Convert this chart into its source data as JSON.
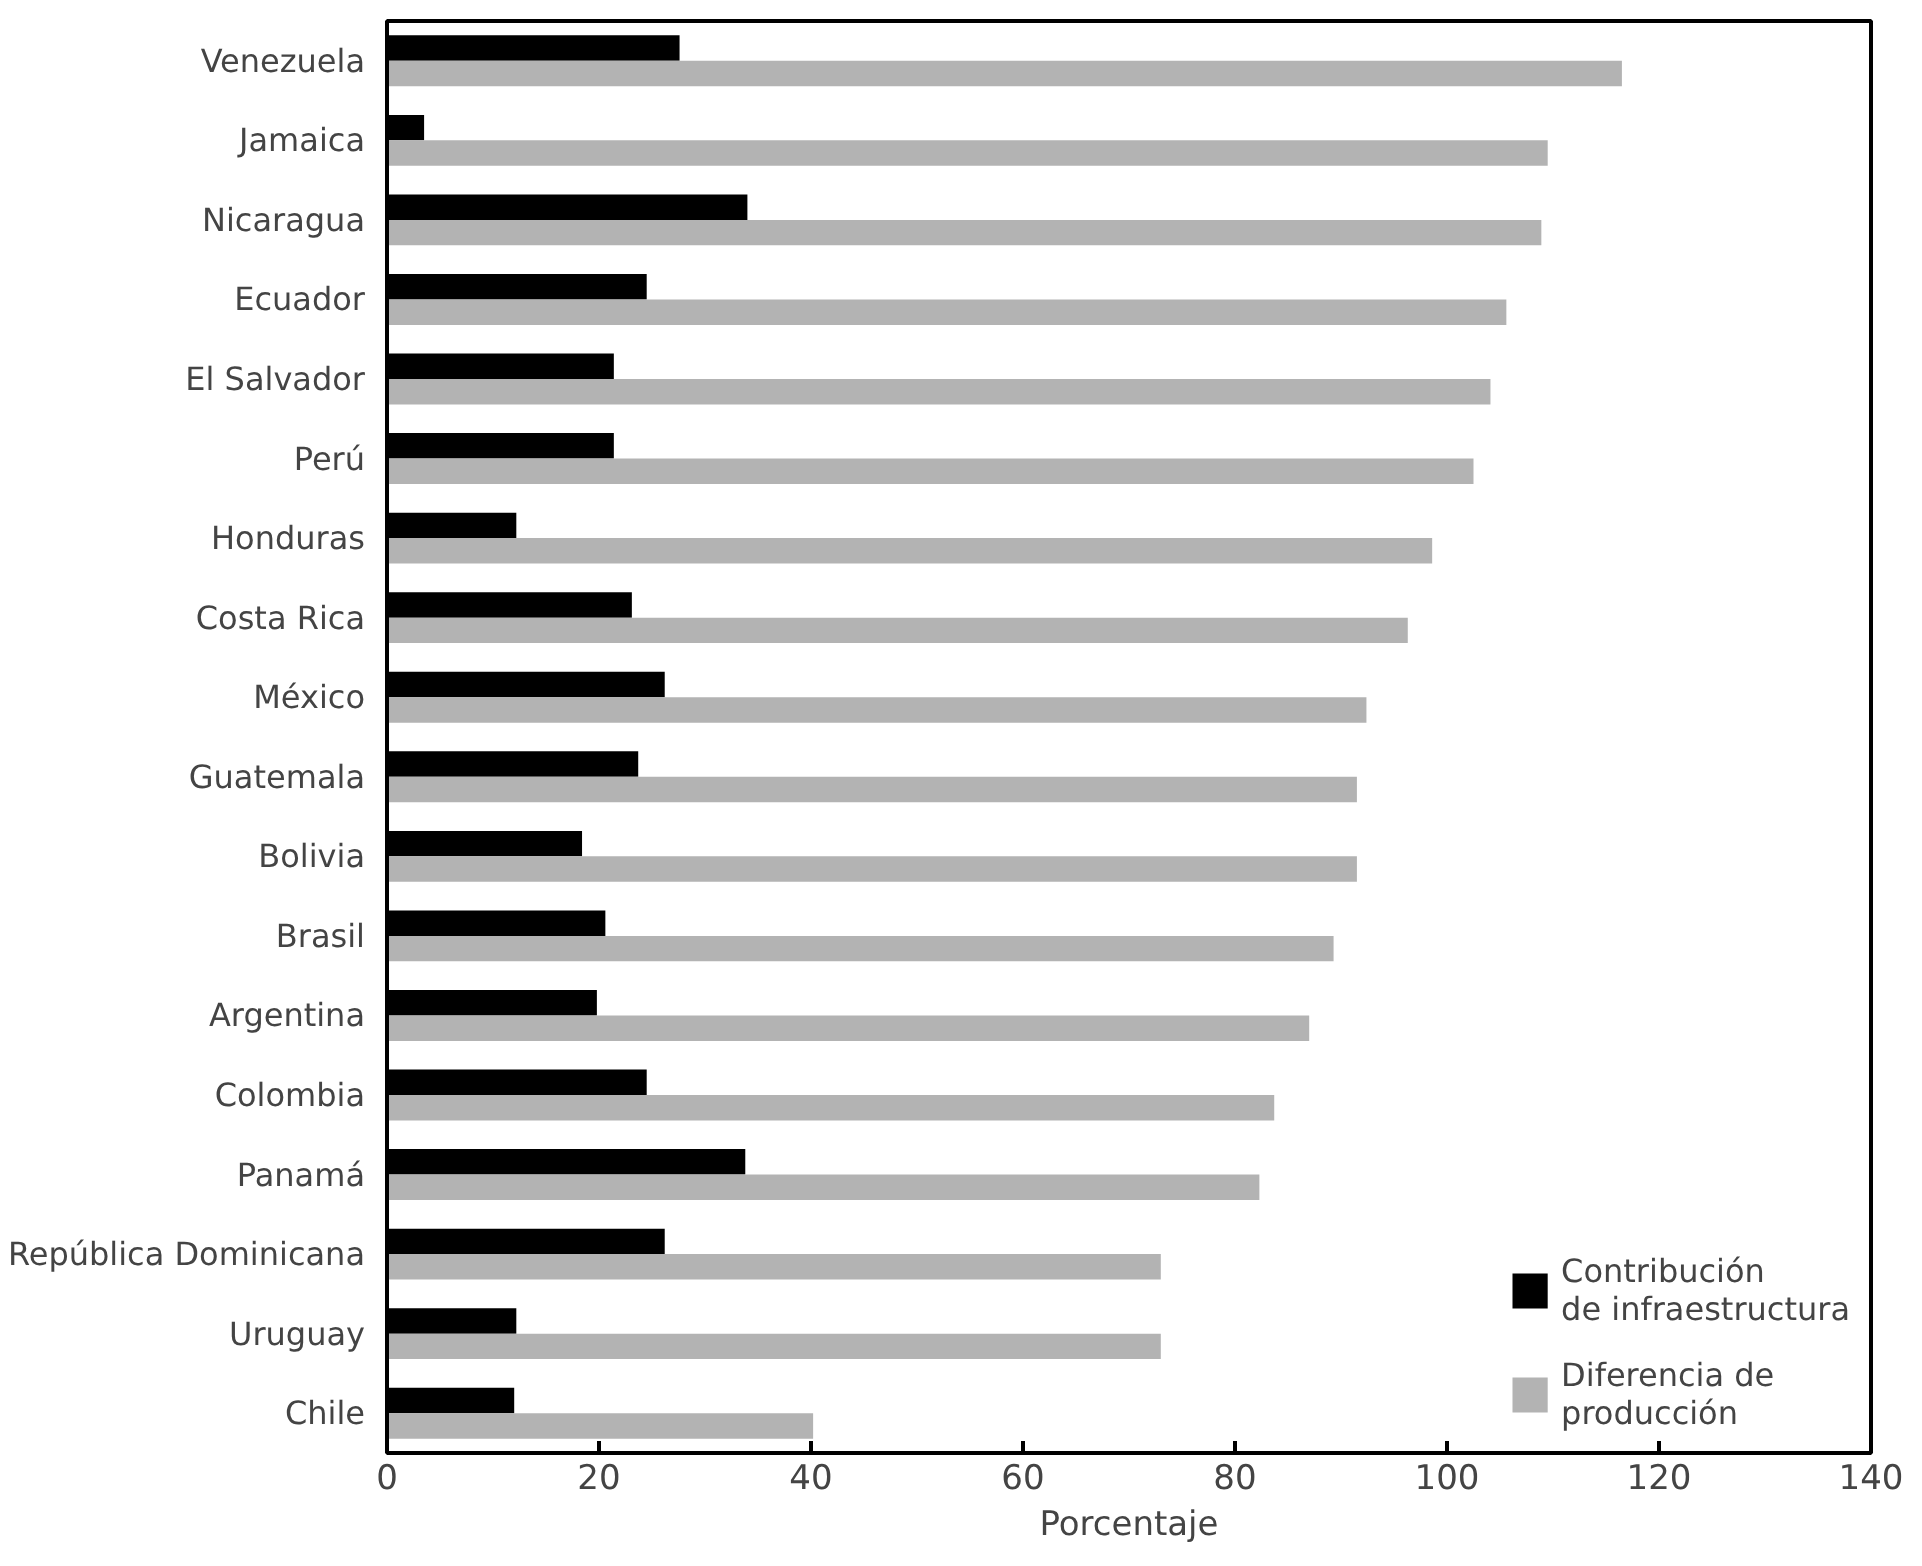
{
  "chart_data": {
    "type": "bar",
    "orientation": "horizontal",
    "xlabel": "Porcentaje",
    "categories": [
      "Venezuela",
      "Jamaica",
      "Nicaragua",
      "Ecuador",
      "El Salvador",
      "Perú",
      "Honduras",
      "Costa Rica",
      "México",
      "Guatemala",
      "Bolivia",
      "Brasil",
      "Argentina",
      "Colombia",
      "Panamá",
      "República Dominicana",
      "Uruguay",
      "Chile"
    ],
    "series": [
      {
        "name": "Contribución\nde infraestructura",
        "color": "#000000",
        "values": [
          27.6,
          3.5,
          34.0,
          24.5,
          21.4,
          21.4,
          12.2,
          23.1,
          26.2,
          23.7,
          18.4,
          20.6,
          19.8,
          24.5,
          33.8,
          26.2,
          12.2,
          12.0
        ]
      },
      {
        "name": "Diferencia de\nproducción",
        "color": "#b3b3b3",
        "values": [
          116.5,
          109.5,
          108.9,
          105.6,
          104.1,
          102.5,
          98.6,
          96.3,
          92.4,
          91.5,
          91.5,
          89.3,
          87.0,
          83.7,
          82.3,
          73.0,
          73.0,
          40.2
        ]
      }
    ],
    "xlim": [
      0,
      140
    ],
    "xticks": [
      0,
      20,
      40,
      60,
      80,
      100,
      120,
      140
    ],
    "grid": false,
    "legend": "bottom right"
  }
}
